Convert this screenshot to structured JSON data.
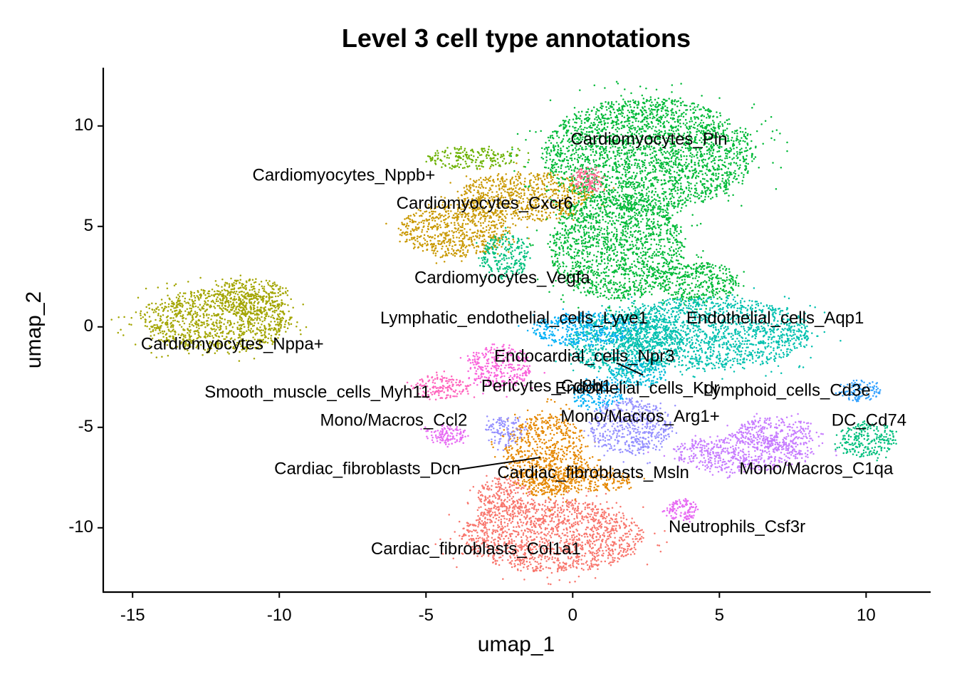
{
  "chart_data": {
    "type": "scatter",
    "title": "Level 3 cell type annotations",
    "xlabel": "umap_1",
    "ylabel": "umap_2",
    "xlim": [
      -16,
      12.2
    ],
    "ylim": [
      -13.2,
      12.9
    ],
    "xticks": [
      -15,
      -10,
      -5,
      0,
      5,
      10
    ],
    "yticks": [
      -10,
      -5,
      0,
      5,
      10
    ],
    "grid": false,
    "legend": "none",
    "series": [
      {
        "color": "#F8766D",
        "clusters": [
          {
            "cx": -0.7,
            "cy": -10.4,
            "rx": 3.1,
            "ry": 1.8
          },
          {
            "cx": -2.3,
            "cy": -8.5,
            "rx": 0.9,
            "ry": 1.0
          }
        ]
      },
      {
        "color": "#E58700",
        "clusters": [
          {
            "cx": -0.9,
            "cy": -6.4,
            "rx": 1.4,
            "ry": 2.1
          },
          {
            "cx": 0.2,
            "cy": -7.6,
            "rx": 1.8,
            "ry": 0.6
          }
        ]
      },
      {
        "color": "#C99800",
        "clusters": [
          {
            "cx": -4.0,
            "cy": 4.8,
            "rx": 1.9,
            "ry": 1.3
          },
          {
            "cx": -1.6,
            "cy": 6.5,
            "rx": 2.3,
            "ry": 1.2
          }
        ]
      },
      {
        "color": "#A3A500",
        "clusters": [
          {
            "cx": -12.2,
            "cy": 0.3,
            "rx": 2.6,
            "ry": 1.6
          },
          {
            "cx": -11.0,
            "cy": 1.5,
            "rx": 1.3,
            "ry": 0.9
          }
        ]
      },
      {
        "color": "#6BB100",
        "clusters": [
          {
            "cx": -3.4,
            "cy": 8.4,
            "rx": 1.6,
            "ry": 0.5
          }
        ]
      },
      {
        "color": "#00BA38",
        "clusters": [
          {
            "cx": 2.6,
            "cy": 8.6,
            "rx": 3.6,
            "ry": 2.8
          },
          {
            "cx": 1.5,
            "cy": 4.0,
            "rx": 2.3,
            "ry": 2.6
          },
          {
            "cx": 4.3,
            "cy": 2.2,
            "rx": 1.4,
            "ry": 1.0
          }
        ]
      },
      {
        "color": "#00BF7D",
        "clusters": [
          {
            "cx": -2.3,
            "cy": 3.5,
            "rx": 0.8,
            "ry": 1.1
          }
        ]
      },
      {
        "color": "#00C0AF",
        "clusters": [
          {
            "cx": 4.7,
            "cy": -0.3,
            "rx": 3.4,
            "ry": 1.8
          },
          {
            "cx": 1.8,
            "cy": -0.8,
            "rx": 2.0,
            "ry": 1.6
          }
        ]
      },
      {
        "color": "#00BCD8",
        "clusters": [
          {
            "cx": 2.2,
            "cy": -2.3,
            "rx": 1.0,
            "ry": 0.7
          }
        ]
      },
      {
        "color": "#00B0F6",
        "clusters": [
          {
            "cx": 0.4,
            "cy": -0.1,
            "rx": 1.8,
            "ry": 0.8
          },
          {
            "cx": 0.8,
            "cy": -3.4,
            "rx": 0.9,
            "ry": 0.7
          }
        ]
      },
      {
        "color": "#35A2FF",
        "clusters": [
          {
            "cx": 9.8,
            "cy": -3.2,
            "rx": 0.7,
            "ry": 0.5
          }
        ]
      },
      {
        "color": "#9590FF",
        "clusters": [
          {
            "cx": 2.0,
            "cy": -5.0,
            "rx": 1.4,
            "ry": 1.4
          },
          {
            "cx": -2.3,
            "cy": -5.2,
            "rx": 0.6,
            "ry": 0.8
          }
        ]
      },
      {
        "color": "#C77CFF",
        "clusters": [
          {
            "cx": 5.8,
            "cy": -6.3,
            "rx": 2.4,
            "ry": 0.9
          },
          {
            "cx": 6.9,
            "cy": -5.3,
            "rx": 1.4,
            "ry": 0.8
          }
        ]
      },
      {
        "color": "#E76BF3",
        "clusters": [
          {
            "cx": -4.3,
            "cy": -5.4,
            "rx": 0.7,
            "ry": 0.5
          },
          {
            "cx": 3.7,
            "cy": -9.1,
            "rx": 0.6,
            "ry": 0.5
          }
        ]
      },
      {
        "color": "#FA62DB",
        "clusters": [
          {
            "cx": -2.5,
            "cy": -2.0,
            "rx": 1.1,
            "ry": 1.1
          }
        ]
      },
      {
        "color": "#FF62BC",
        "clusters": [
          {
            "cx": -4.5,
            "cy": -3.0,
            "rx": 1.0,
            "ry": 0.6
          }
        ]
      },
      {
        "color": "#00BF7D",
        "clusters": [
          {
            "cx": 10.0,
            "cy": -5.6,
            "rx": 1.0,
            "ry": 0.9
          }
        ]
      },
      {
        "color": "#FF6C91",
        "clusters": [
          {
            "cx": 0.5,
            "cy": 7.3,
            "rx": 0.5,
            "ry": 0.6
          }
        ]
      }
    ],
    "annotations": [
      {
        "text": "Cardiomyocytes_Pln",
        "x": 2.6,
        "y": 9.3
      },
      {
        "text": "Cardiomyocytes_Nppb+",
        "x": -7.8,
        "y": 7.5
      },
      {
        "text": "Cardiomyocytes_Cxcr6",
        "x": -3.0,
        "y": 6.1
      },
      {
        "text": "Cardiomyocytes_Vegfa",
        "x": -2.4,
        "y": 2.4
      },
      {
        "text": "Lymphatic_endothelial_cells_Lyve1",
        "x": -2.0,
        "y": 0.4
      },
      {
        "text": "Endothelial_cells_Aqp1",
        "x": 6.9,
        "y": 0.4
      },
      {
        "text": "Cardiomyocytes_Nppa+",
        "x": -11.6,
        "y": -0.9
      },
      {
        "text": "Endocardial_cells_Npr3",
        "x": 0.4,
        "y": -1.5
      },
      {
        "text": "Smooth_muscle_cells_Myh11",
        "x": -8.7,
        "y": -3.3
      },
      {
        "text": "Pericytes_Cd8b1",
        "x": -0.9,
        "y": -3.0
      },
      {
        "text": "Endothelial_cells_Kdr",
        "x": 2.2,
        "y": -3.1
      },
      {
        "text": "Lymphoid_cells_Cd3e",
        "x": 7.3,
        "y": -3.2
      },
      {
        "text": "Mono/Macros_Ccl2",
        "x": -6.1,
        "y": -4.7
      },
      {
        "text": "Mono/Macros_Arg1+",
        "x": 2.3,
        "y": -4.5
      },
      {
        "text": "DC_Cd74",
        "x": 10.1,
        "y": -4.7
      },
      {
        "text": "Cardiac_fibroblasts_Dcn",
        "x": -7.0,
        "y": -7.1
      },
      {
        "text": "Cardiac_fibroblasts_Msln",
        "x": 0.7,
        "y": -7.3
      },
      {
        "text": "Mono/Macros_C1qa",
        "x": 8.3,
        "y": -7.1
      },
      {
        "text": "Neutrophils_Csf3r",
        "x": 5.6,
        "y": -10.0
      },
      {
        "text": "Cardiac_fibroblasts_Col1a1",
        "x": -3.3,
        "y": -11.1
      }
    ],
    "leader_lines": [
      {
        "x1": -3.9,
        "y1": -7.1,
        "x2": -1.1,
        "y2": -6.5
      },
      {
        "x1": 1.5,
        "y1": -1.8,
        "x2": 2.4,
        "y2": -2.4
      }
    ]
  }
}
